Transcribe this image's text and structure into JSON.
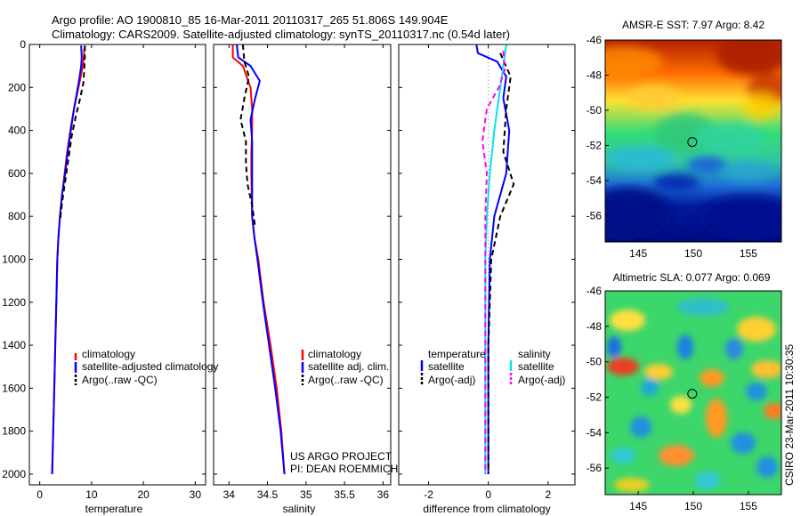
{
  "header": {
    "line1": "Argo profile: AO 1900810_85 16-Mar-2011 20110317_265 51.806S 149.904E",
    "line2": "Climatology: CARS2009. Satellite-adjusted climatology: synTS_20110317.nc (0.54d later)"
  },
  "credit": {
    "line1": "US ARGO PROJECT",
    "line2": "PI: DEAN ROEMMICH"
  },
  "stamp": "CSIRO 23-Mar-2011 10:30:35",
  "colors": {
    "climatology": "#ff0000",
    "satellite": "#0000ff",
    "argo": "#000000",
    "satellite_diff_sal": "#00e5e5",
    "argo_diff_sal": "#ff00ff"
  },
  "chart_data": [
    {
      "type": "line",
      "xlabel": "temperature",
      "ylim": [
        2050,
        0
      ],
      "xlim": [
        -2,
        32
      ],
      "xticks": [
        "0",
        "10",
        "20",
        "30"
      ],
      "yticks": [
        "0",
        "200",
        "400",
        "600",
        "800",
        "1000",
        "1200",
        "1400",
        "1600",
        "1800",
        "2000"
      ],
      "legend": [
        "climatology",
        "satellite-adjusted climatology",
        "Argo(..raw -QC)"
      ],
      "series": [
        {
          "name": "climatology",
          "color": "#ff0000",
          "style": "solid",
          "points": [
            [
              8.6,
              20
            ],
            [
              8.5,
              60
            ],
            [
              8.3,
              100
            ],
            [
              7.9,
              150
            ],
            [
              7.3,
              220
            ],
            [
              6.6,
              300
            ],
            [
              5.9,
              400
            ],
            [
              5.3,
              500
            ],
            [
              4.8,
              600
            ],
            [
              4.3,
              700
            ],
            [
              3.9,
              800
            ],
            [
              3.6,
              900
            ],
            [
              3.4,
              1000
            ],
            [
              3.2,
              1200
            ],
            [
              3.0,
              1400
            ],
            [
              2.8,
              1600
            ],
            [
              2.6,
              1800
            ],
            [
              2.4,
              2000
            ]
          ]
        },
        {
          "name": "satellite-adjusted climatology",
          "color": "#0000ff",
          "style": "solid",
          "points": [
            [
              8.0,
              5
            ],
            [
              8.1,
              60
            ],
            [
              8.0,
              100
            ],
            [
              7.7,
              150
            ],
            [
              7.2,
              220
            ],
            [
              6.6,
              300
            ],
            [
              6.0,
              400
            ],
            [
              5.4,
              500
            ],
            [
              4.9,
              600
            ],
            [
              4.3,
              700
            ],
            [
              3.9,
              800
            ],
            [
              3.6,
              900
            ],
            [
              3.4,
              1000
            ],
            [
              3.2,
              1200
            ],
            [
              3.0,
              1400
            ],
            [
              2.8,
              1600
            ],
            [
              2.6,
              1800
            ],
            [
              2.4,
              2000
            ]
          ]
        },
        {
          "name": "Argo(..raw -QC)",
          "color": "#000000",
          "style": "dash",
          "points": [
            [
              8.7,
              5
            ],
            [
              8.7,
              60
            ],
            [
              8.6,
              120
            ],
            [
              8.4,
              180
            ],
            [
              7.8,
              250
            ],
            [
              7.0,
              330
            ],
            [
              6.2,
              420
            ],
            [
              5.6,
              520
            ],
            [
              5.0,
              620
            ],
            [
              4.4,
              720
            ],
            [
              3.9,
              820
            ]
          ]
        }
      ]
    },
    {
      "type": "line",
      "xlabel": "salinity",
      "ylim": [
        2050,
        0
      ],
      "xlim": [
        33.8,
        36.1
      ],
      "xticks": [
        "34",
        "34.5",
        "35",
        "35.5",
        "36"
      ],
      "legend": [
        "climatology",
        "satellite adj. clim.",
        "Argo(..raw -QC)"
      ],
      "series": [
        {
          "name": "climatology",
          "color": "#ff0000",
          "style": "solid",
          "points": [
            [
              34.05,
              0
            ],
            [
              34.05,
              60
            ],
            [
              34.18,
              100
            ],
            [
              34.28,
              200
            ],
            [
              34.3,
              300
            ],
            [
              34.3,
              400
            ],
            [
              34.29,
              500
            ],
            [
              34.29,
              600
            ],
            [
              34.3,
              800
            ],
            [
              34.33,
              900
            ],
            [
              34.38,
              1000
            ],
            [
              34.45,
              1200
            ],
            [
              34.54,
              1400
            ],
            [
              34.62,
              1600
            ],
            [
              34.68,
              1800
            ],
            [
              34.72,
              2000
            ]
          ]
        },
        {
          "name": "satellite adj. clim.",
          "color": "#0000ff",
          "style": "solid",
          "points": [
            [
              34.1,
              0
            ],
            [
              34.12,
              60
            ],
            [
              34.28,
              100
            ],
            [
              34.4,
              170
            ],
            [
              34.34,
              250
            ],
            [
              34.28,
              350
            ],
            [
              34.3,
              450
            ],
            [
              34.3,
              600
            ],
            [
              34.3,
              800
            ],
            [
              34.33,
              900
            ],
            [
              34.37,
              1000
            ],
            [
              34.44,
              1200
            ],
            [
              34.52,
              1400
            ],
            [
              34.6,
              1600
            ],
            [
              34.67,
              1800
            ],
            [
              34.72,
              2000
            ]
          ]
        },
        {
          "name": "Argo(..raw -QC)",
          "color": "#000000",
          "style": "dash",
          "points": [
            [
              34.18,
              0
            ],
            [
              34.2,
              80
            ],
            [
              34.26,
              150
            ],
            [
              34.2,
              250
            ],
            [
              34.15,
              350
            ],
            [
              34.22,
              450
            ],
            [
              34.22,
              550
            ],
            [
              34.24,
              650
            ],
            [
              34.3,
              750
            ],
            [
              34.34,
              850
            ]
          ]
        }
      ]
    },
    {
      "type": "line",
      "xlabel": "difference from climatology",
      "ylim": [
        2050,
        0
      ],
      "xlim": [
        -3.0,
        2.9
      ],
      "xticks": [
        "-2",
        "0",
        "2"
      ],
      "legend": [
        "temperature",
        "satellite",
        "Argo(-adj)",
        "salinity",
        "satellite",
        "Argo(-adj)"
      ],
      "series": [
        {
          "name": "satellite",
          "group": "temperature",
          "color": "#0000ff",
          "style": "solid",
          "points": [
            [
              -0.4,
              0
            ],
            [
              -0.35,
              40
            ],
            [
              0.3,
              80
            ],
            [
              0.6,
              150
            ],
            [
              0.5,
              250
            ],
            [
              0.7,
              400
            ],
            [
              0.6,
              600
            ],
            [
              0.2,
              800
            ],
            [
              0.05,
              1000
            ],
            [
              0.0,
              1400
            ],
            [
              0.0,
              2000
            ]
          ]
        },
        {
          "name": "Argo(-adj)",
          "group": "temperature",
          "color": "#000000",
          "style": "dash",
          "points": [
            [
              0.4,
              40
            ],
            [
              0.75,
              150
            ],
            [
              0.6,
              300
            ],
            [
              0.5,
              500
            ],
            [
              0.85,
              650
            ],
            [
              0.4,
              800
            ],
            [
              0.1,
              1000
            ],
            [
              0.0,
              1400
            ],
            [
              0.0,
              2000
            ]
          ]
        },
        {
          "name": "satellite",
          "group": "salinity",
          "color": "#00e5e5",
          "style": "solid",
          "points": [
            [
              0.6,
              0
            ],
            [
              0.5,
              100
            ],
            [
              0.35,
              250
            ],
            [
              0.2,
              400
            ],
            [
              0.05,
              600
            ],
            [
              -0.05,
              800
            ],
            [
              -0.1,
              1000
            ],
            [
              -0.1,
              1400
            ],
            [
              -0.1,
              2000
            ]
          ]
        },
        {
          "name": "Argo(-adj)",
          "group": "salinity",
          "color": "#ff00ff",
          "style": "dash",
          "points": [
            [
              0.5,
              30
            ],
            [
              0.55,
              120
            ],
            [
              0.35,
              200
            ],
            [
              -0.05,
              300
            ],
            [
              -0.2,
              450
            ],
            [
              -0.05,
              600
            ],
            [
              -0.1,
              800
            ],
            [
              -0.1,
              1000
            ],
            [
              -0.1,
              1400
            ],
            [
              -0.1,
              2000
            ]
          ]
        }
      ]
    },
    {
      "type": "heatmap",
      "title": "AMSR-E SST: 7.97 Argo: 8.42",
      "xlim": [
        142,
        158
      ],
      "ylim": [
        -57.5,
        -46
      ],
      "xticks": [
        "145",
        "150",
        "155"
      ],
      "yticks": [
        "-46",
        "-48",
        "-50",
        "-52",
        "-54",
        "-56"
      ],
      "marker": {
        "lon": 149.904,
        "lat": -51.806
      }
    },
    {
      "type": "heatmap",
      "title": "Altimetric SLA: 0.077 Argo: 0.069",
      "xlim": [
        142,
        158
      ],
      "ylim": [
        -57.5,
        -46
      ],
      "xticks": [
        "145",
        "150",
        "155"
      ],
      "yticks": [
        "-46",
        "-48",
        "-50",
        "-52",
        "-54",
        "-56"
      ],
      "marker": {
        "lon": 149.904,
        "lat": -51.806
      }
    }
  ]
}
